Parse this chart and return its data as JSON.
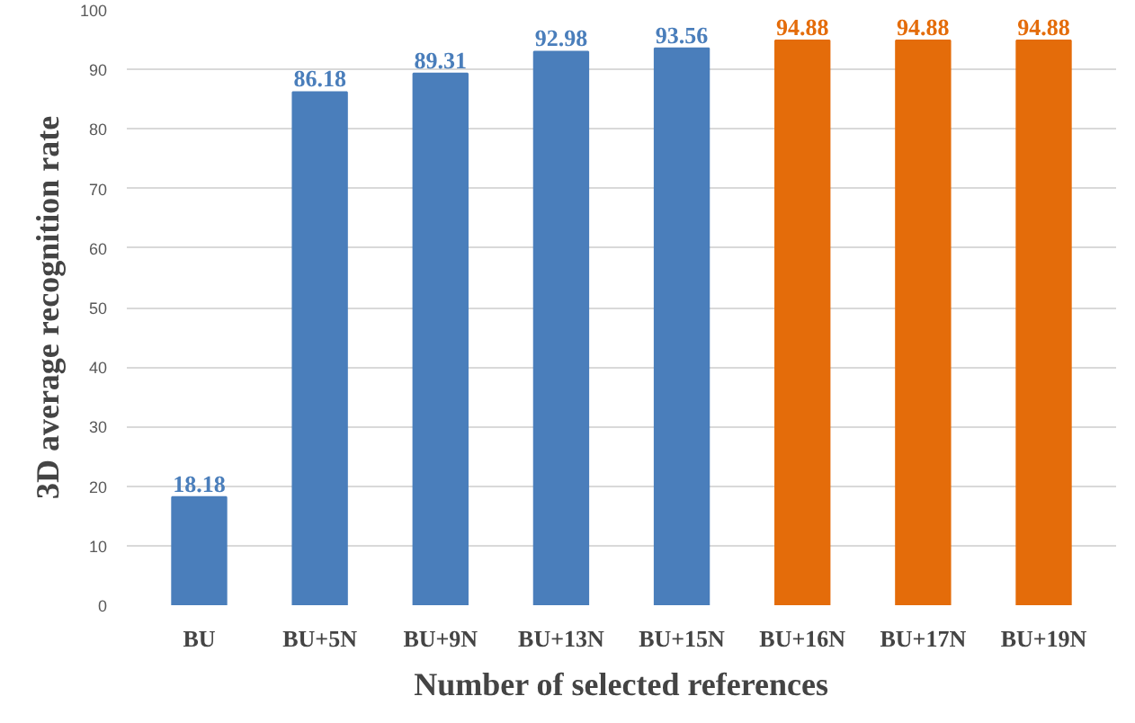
{
  "chart_data": {
    "type": "bar",
    "xlabel": "Number of selected references",
    "ylabel": "3D average recognition rate",
    "categories": [
      "BU",
      "BU+5N",
      "BU+9N",
      "BU+13N",
      "BU+15N",
      "BU+16N",
      "BU+17N",
      "BU+19N"
    ],
    "values": [
      18.18,
      86.18,
      89.31,
      92.98,
      93.56,
      94.88,
      94.88,
      94.88
    ],
    "colors": [
      "#4a7ebb",
      "#4a7ebb",
      "#4a7ebb",
      "#4a7ebb",
      "#4a7ebb",
      "#e46c0a",
      "#e46c0a",
      "#e46c0a"
    ],
    "ylim": [
      0,
      100
    ],
    "yticks": [
      0,
      10,
      20,
      30,
      40,
      50,
      60,
      70,
      80,
      90,
      100
    ],
    "grid": "y",
    "data_labels": true
  }
}
